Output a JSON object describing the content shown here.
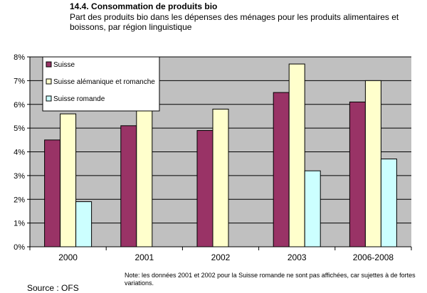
{
  "header": {
    "title": "14.4. Consommation de produits bio",
    "subtitle": "Part des produits bio dans les dépenses des ménages pour les produits alimentaires et boissons, par région linguistique"
  },
  "footer": {
    "note": "Note: les données 2001 et 2002 pour la Suisse romande ne sont pas affichées, car sujettes à de fortes variations.",
    "source": "Source : OFS"
  },
  "chart_data": {
    "type": "bar",
    "categories": [
      "2000",
      "2001",
      "2002",
      "2003",
      "2006-2008"
    ],
    "series": [
      {
        "name": "Suisse",
        "color": "#993366",
        "values": [
          4.5,
          5.1,
          4.9,
          6.5,
          6.1
        ]
      },
      {
        "name": "Suisse alémanique et romanche",
        "color": "#FFFFCC",
        "values": [
          5.6,
          6.0,
          5.8,
          7.7,
          7.0
        ]
      },
      {
        "name": "Suisse romande",
        "color": "#CCFFFF",
        "values": [
          1.9,
          null,
          null,
          3.2,
          3.7
        ]
      }
    ],
    "yticks": [
      "0%",
      "1%",
      "2%",
      "3%",
      "4%",
      "5%",
      "6%",
      "7%",
      "8%"
    ],
    "ylim": [
      0,
      8
    ],
    "grid": true,
    "plot_background": "#C0C0C0",
    "legend_position": "top-left"
  }
}
